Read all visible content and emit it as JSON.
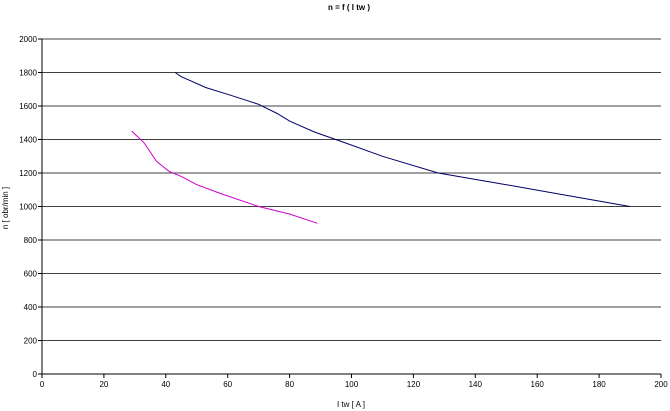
{
  "chart_data": {
    "type": "line",
    "title": "n = f ( I tw )",
    "xlabel": "I tw [ A ]",
    "ylabel": "n [ obr/min ]",
    "xlim": [
      0,
      200
    ],
    "ylim": [
      0,
      2000
    ],
    "xticks": [
      0,
      20,
      40,
      60,
      80,
      100,
      120,
      140,
      160,
      180,
      200
    ],
    "yticks": [
      0,
      200,
      400,
      600,
      800,
      1000,
      1200,
      1400,
      1600,
      1800,
      2000
    ],
    "grid": "horizontal",
    "legend": "none",
    "series": [
      {
        "color": "#000066",
        "points": [
          [
            43,
            1800
          ],
          [
            45,
            1775
          ],
          [
            53,
            1710
          ],
          [
            60,
            1670
          ],
          [
            70,
            1610
          ],
          [
            76,
            1555
          ],
          [
            80,
            1510
          ],
          [
            88,
            1445
          ],
          [
            98,
            1380
          ],
          [
            110,
            1300
          ],
          [
            128,
            1200
          ],
          [
            150,
            1130
          ],
          [
            170,
            1065
          ],
          [
            190,
            1000
          ]
        ]
      },
      {
        "color": "#cc00cc",
        "points": [
          [
            29,
            1450
          ],
          [
            33,
            1380
          ],
          [
            37,
            1270
          ],
          [
            41,
            1210
          ],
          [
            45,
            1180
          ],
          [
            50,
            1130
          ],
          [
            58,
            1075
          ],
          [
            70,
            1000
          ],
          [
            80,
            955
          ],
          [
            89,
            900
          ]
        ]
      }
    ]
  }
}
